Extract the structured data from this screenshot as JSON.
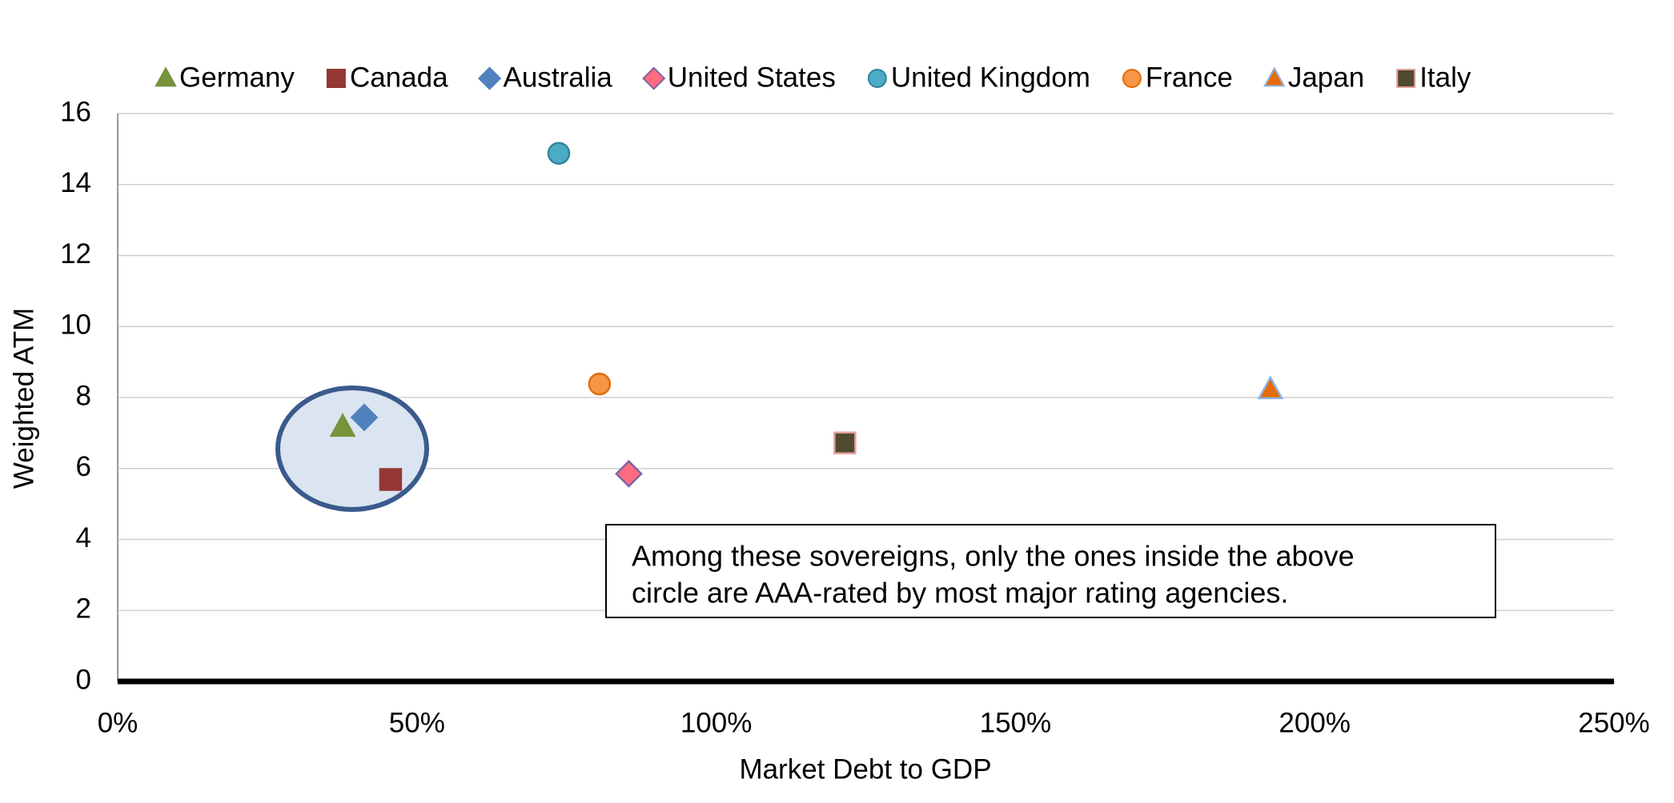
{
  "chart_data": {
    "type": "scatter",
    "xlabel": "Market Debt to GDP",
    "ylabel": "Weighted ATM",
    "xlim": [
      0,
      250
    ],
    "ylim": [
      0,
      16
    ],
    "xticks": [
      {
        "value": 0,
        "label": "0%"
      },
      {
        "value": 50,
        "label": "50%"
      },
      {
        "value": 100,
        "label": "100%"
      },
      {
        "value": 150,
        "label": "150%"
      },
      {
        "value": 200,
        "label": "200%"
      },
      {
        "value": 250,
        "label": "250%"
      }
    ],
    "yticks": [
      0,
      2,
      4,
      6,
      8,
      10,
      12,
      14,
      16
    ],
    "grid": true,
    "legend": "top",
    "annotation": [
      "Among these sovereigns, only the ones inside the above",
      "circle are AAA-rated by most major rating agencies."
    ],
    "series": [
      {
        "name": "Germany",
        "marker": "triangle",
        "color": "#77933c",
        "edgecolor": "#77933c",
        "x": [
          37.6
        ],
        "values": [
          7.17
        ]
      },
      {
        "name": "Canada",
        "marker": "square",
        "color": "#953735",
        "edgecolor": "#953735",
        "x": [
          45.6
        ],
        "values": [
          5.69
        ]
      },
      {
        "name": "Australia",
        "marker": "diamond",
        "color": "#4f81bd",
        "edgecolor": "#4f81bd",
        "x": [
          41.2
        ],
        "values": [
          7.44
        ]
      },
      {
        "name": "United States",
        "marker": "diamond",
        "color": "#ff6b7f",
        "edgecolor": "#8064a2",
        "x": [
          85.4
        ],
        "values": [
          5.85
        ]
      },
      {
        "name": "United Kingdom",
        "marker": "circle",
        "color": "#4bacc6",
        "edgecolor": "#31859c",
        "x": [
          73.7
        ],
        "values": [
          14.88
        ]
      },
      {
        "name": "France",
        "marker": "circle",
        "color": "#f79646",
        "edgecolor": "#e46c0a",
        "x": [
          80.5
        ],
        "values": [
          8.38
        ]
      },
      {
        "name": "Japan",
        "marker": "triangle",
        "color": "#e46c0a",
        "edgecolor": "#8db3e2",
        "x": [
          192.6
        ],
        "values": [
          8.23
        ]
      },
      {
        "name": "Italy",
        "marker": "square",
        "color": "#4f4a30",
        "edgecolor": "#e6a0a0",
        "x": [
          121.5
        ],
        "values": [
          6.72
        ]
      }
    ]
  }
}
